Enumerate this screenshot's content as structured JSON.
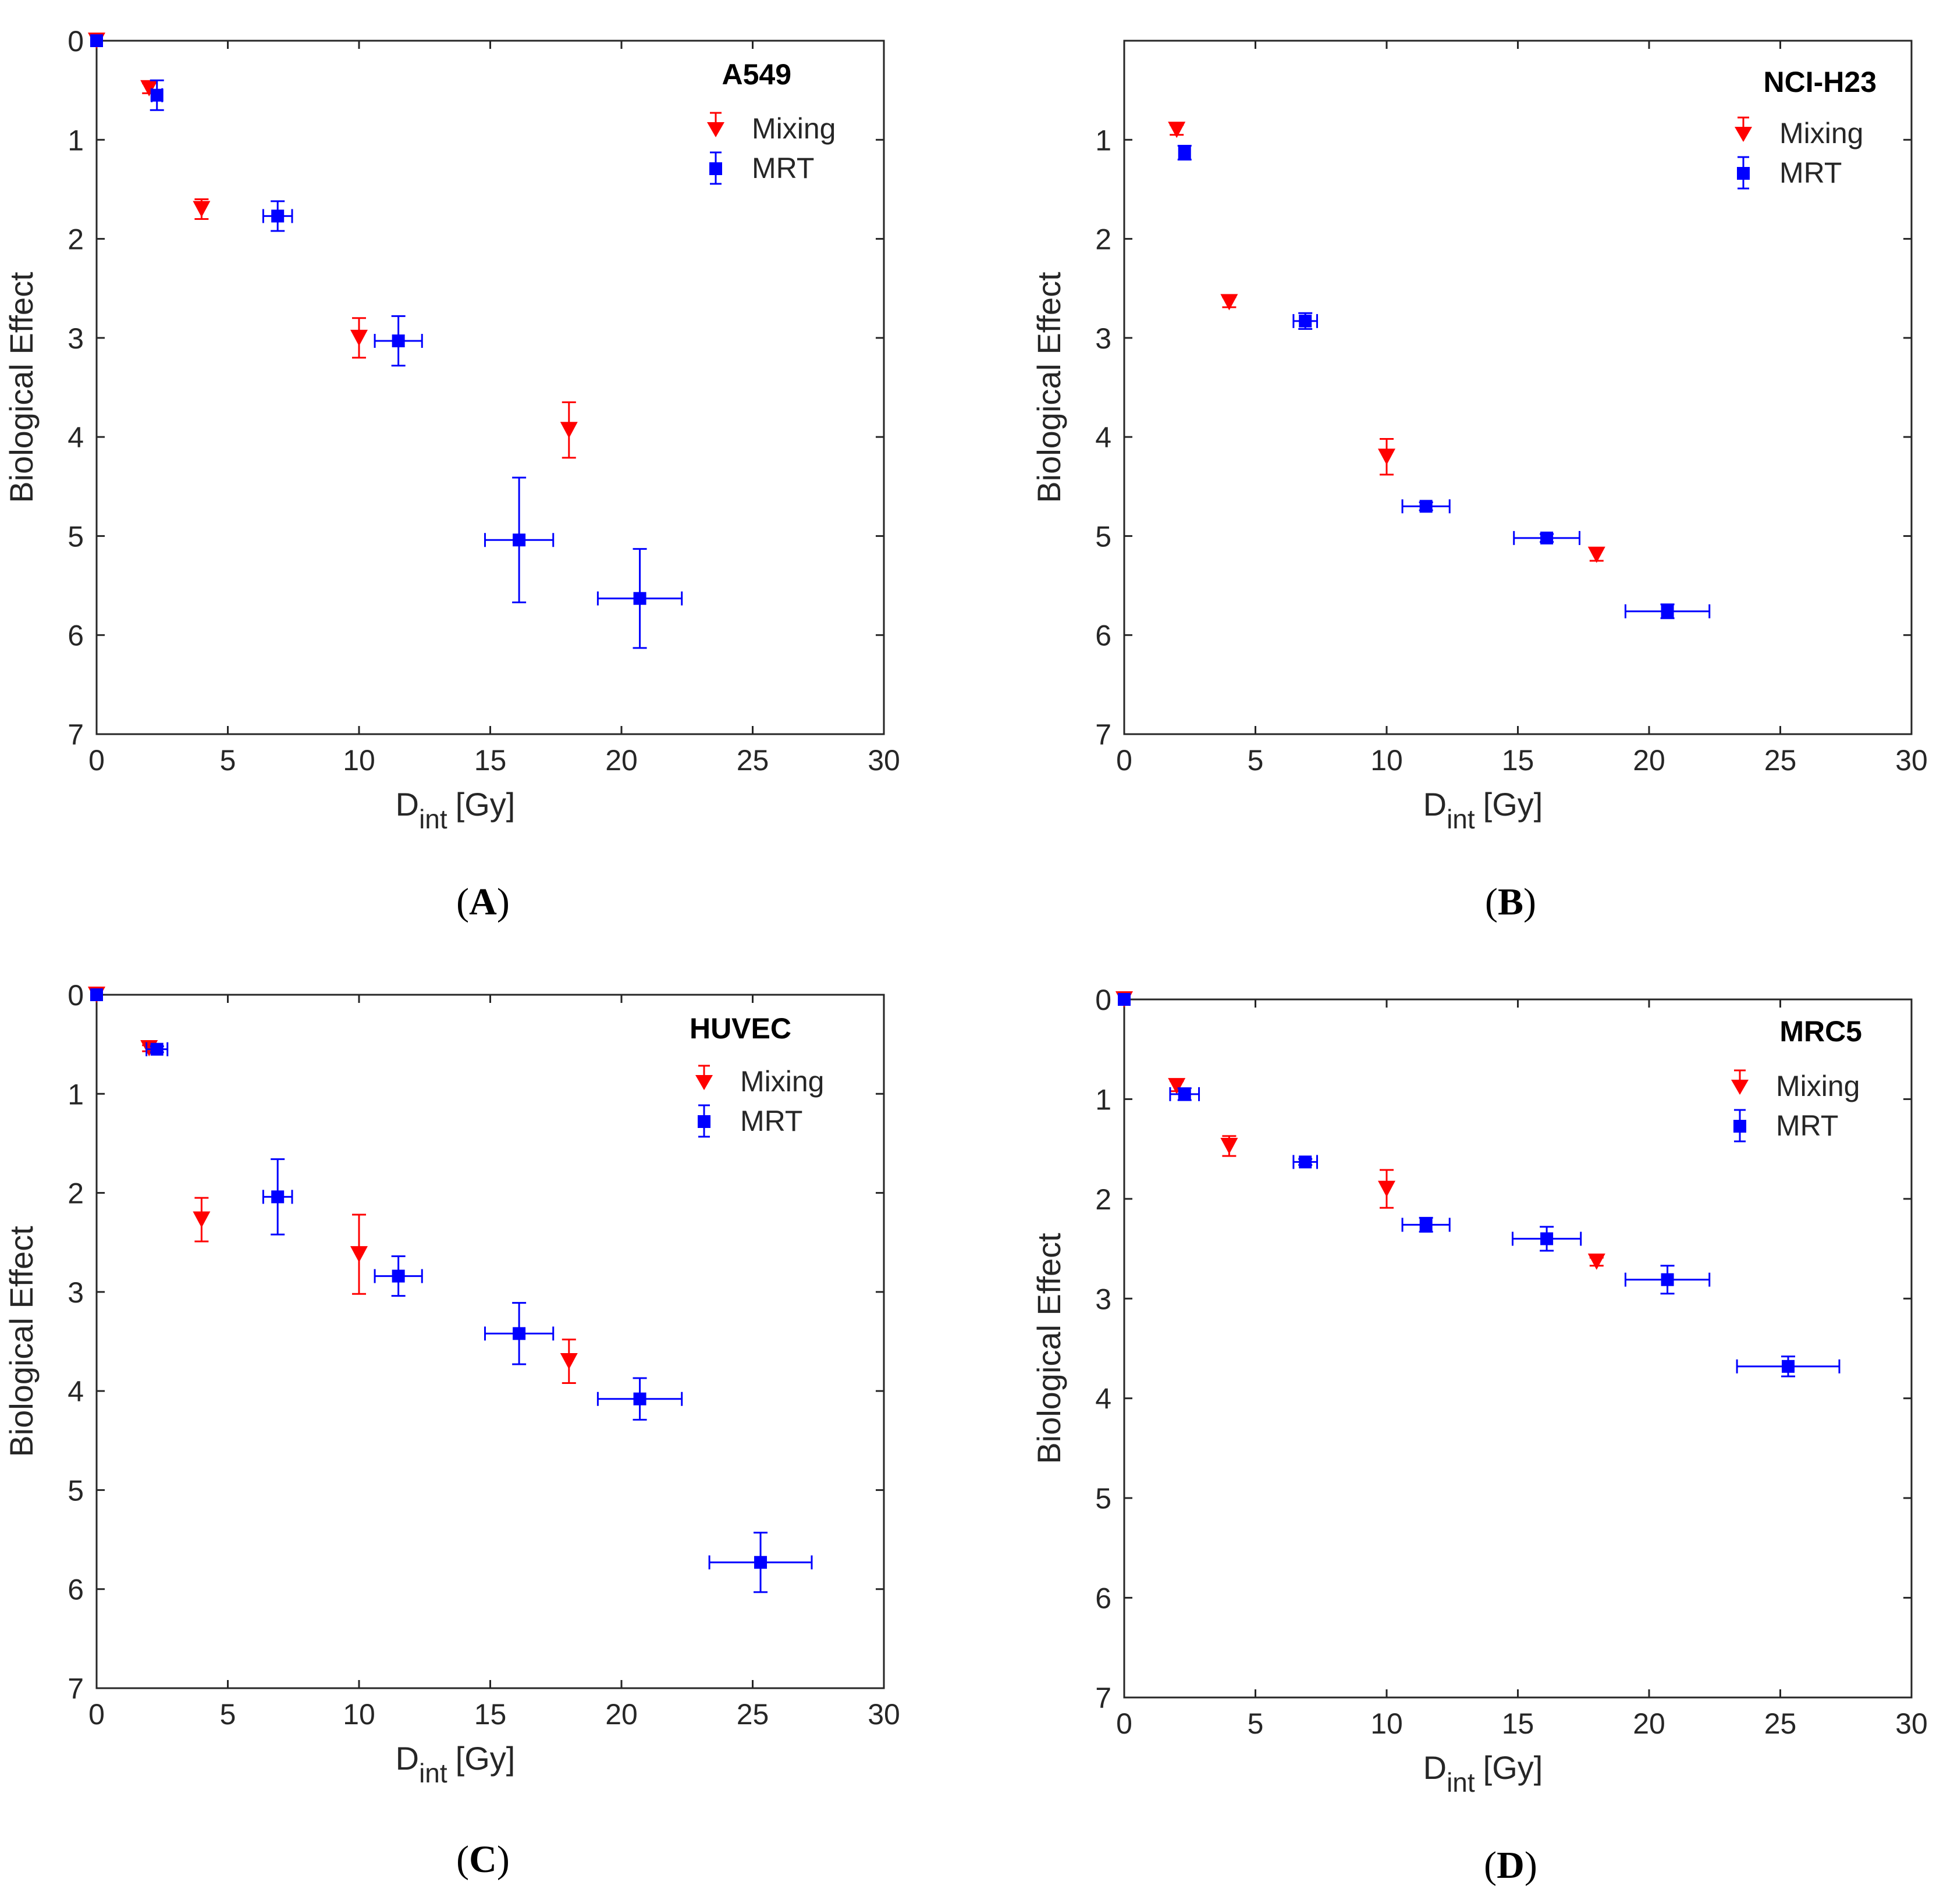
{
  "colors": {
    "mixing": "#ff0000",
    "mrt": "#0000ff",
    "axis": "#262626"
  },
  "chart_data": [
    {
      "type": "scatter",
      "panel": "(A)",
      "panel_letter": "A",
      "title": "A549",
      "xlabel_main": "D",
      "xlabel_sub": "int",
      "xlabel_unit": "[Gy]",
      "ylabel": "Biological Effect",
      "xlim": [
        0,
        30
      ],
      "ylim": [
        0,
        7
      ],
      "y_reversed": true,
      "xticks": [
        0,
        5,
        10,
        15,
        20,
        25,
        30
      ],
      "yticks": [
        0,
        1,
        2,
        3,
        4,
        5,
        6,
        7
      ],
      "legend": {
        "mixing": "Mixing",
        "mrt": "MRT",
        "position": "top-right"
      },
      "series": [
        {
          "name": "Mixing",
          "marker": "triangle-down",
          "color": "#ff0000",
          "x": [
            0,
            2,
            4,
            10,
            18
          ],
          "y": [
            0,
            0.48,
            1.7,
            3.0,
            3.93
          ],
          "yerr_low": [
            0,
            0.05,
            0.1,
            0.2,
            0.28
          ],
          "yerr_high": [
            0,
            0.05,
            0.1,
            0.2,
            0.28
          ],
          "xerr": [
            0,
            0,
            0,
            0,
            0
          ]
        },
        {
          "name": "MRT",
          "marker": "square",
          "color": "#0000ff",
          "x": [
            0,
            2.3,
            6.9,
            11.5,
            16.1,
            20.7
          ],
          "y": [
            0,
            0.55,
            1.77,
            3.03,
            5.04,
            5.63
          ],
          "yerr_low": [
            0,
            0.15,
            0.15,
            0.25,
            0.63,
            0.5
          ],
          "yerr_high": [
            0,
            0.15,
            0.15,
            0.25,
            0.63,
            0.5
          ],
          "xerr": [
            0,
            0.2,
            0.55,
            0.9,
            1.3,
            1.6
          ]
        }
      ]
    },
    {
      "type": "scatter",
      "panel": "(B)",
      "panel_letter": "B",
      "title": "NCI-H23",
      "xlabel_main": "D",
      "xlabel_sub": "int",
      "xlabel_unit": "[Gy]",
      "ylabel": "Biological Effect",
      "xlim": [
        0,
        30
      ],
      "ylim": [
        0,
        7
      ],
      "y_reversed": true,
      "xticks": [
        0,
        5,
        10,
        15,
        20,
        25,
        30
      ],
      "yticks": [
        1,
        2,
        3,
        4,
        5,
        6,
        7
      ],
      "legend": {
        "mixing": "Mixing",
        "mrt": "MRT",
        "position": "top-right"
      },
      "series": [
        {
          "name": "Mixing",
          "marker": "triangle-down",
          "color": "#ff0000",
          "x": [
            2,
            4,
            10,
            18
          ],
          "y": [
            0.9,
            2.64,
            4.2,
            5.19
          ],
          "yerr_low": [
            0.05,
            0.05,
            0.18,
            0.06
          ],
          "yerr_high": [
            0.05,
            0.05,
            0.18,
            0.06
          ],
          "xerr": [
            0,
            0,
            0,
            0
          ]
        },
        {
          "name": "MRT",
          "marker": "square",
          "color": "#0000ff",
          "x": [
            2.3,
            6.9,
            11.5,
            16.1,
            20.7
          ],
          "y": [
            1.13,
            2.83,
            4.7,
            5.02,
            5.76
          ],
          "yerr_low": [
            0.07,
            0.08,
            0.04,
            0.04,
            0.07
          ],
          "yerr_high": [
            0.07,
            0.08,
            0.04,
            0.04,
            0.07
          ],
          "xerr": [
            0.2,
            0.45,
            0.9,
            1.25,
            1.6
          ]
        }
      ]
    },
    {
      "type": "scatter",
      "panel": "(C)",
      "panel_letter": "C",
      "title": "HUVEC",
      "xlabel_main": "D",
      "xlabel_sub": "int",
      "xlabel_unit": "[Gy]",
      "ylabel": "Biological Effect",
      "xlim": [
        0,
        30
      ],
      "ylim": [
        0,
        7
      ],
      "y_reversed": true,
      "xticks": [
        0,
        5,
        10,
        15,
        20,
        25,
        30
      ],
      "yticks": [
        0,
        1,
        2,
        3,
        4,
        5,
        6,
        7
      ],
      "legend": {
        "mixing": "Mixing",
        "mrt": "MRT",
        "position": "top-right"
      },
      "series": [
        {
          "name": "Mixing",
          "marker": "triangle-down",
          "color": "#ff0000",
          "x": [
            0,
            2,
            4,
            10,
            18
          ],
          "y": [
            0,
            0.54,
            2.27,
            2.62,
            3.7
          ],
          "yerr_low": [
            0,
            0.03,
            0.22,
            0.4,
            0.22
          ],
          "yerr_high": [
            0,
            0.03,
            0.22,
            0.4,
            0.22
          ],
          "xerr": [
            0,
            0,
            0,
            0,
            0
          ]
        },
        {
          "name": "MRT",
          "marker": "square",
          "color": "#0000ff",
          "x": [
            0,
            2.3,
            6.9,
            11.5,
            16.1,
            20.7,
            25.3
          ],
          "y": [
            0,
            0.55,
            2.04,
            2.84,
            3.42,
            4.08,
            5.73
          ],
          "yerr_low": [
            0,
            0.03,
            0.38,
            0.2,
            0.31,
            0.21,
            0.3
          ],
          "yerr_high": [
            0,
            0.03,
            0.38,
            0.2,
            0.31,
            0.21,
            0.3
          ],
          "xerr": [
            0,
            0.4,
            0.55,
            0.9,
            1.3,
            1.6,
            1.95
          ]
        }
      ]
    },
    {
      "type": "scatter",
      "panel": "(D)",
      "panel_letter": "D",
      "title": "MRC5",
      "xlabel_main": "D",
      "xlabel_sub": "int",
      "xlabel_unit": "[Gy]",
      "ylabel": "Biological Effect",
      "xlim": [
        0,
        30
      ],
      "ylim": [
        0,
        7
      ],
      "y_reversed": true,
      "xticks": [
        0,
        5,
        10,
        15,
        20,
        25,
        30
      ],
      "yticks": [
        0,
        1,
        2,
        3,
        4,
        5,
        6,
        7
      ],
      "legend": {
        "mixing": "Mixing",
        "mrt": "MRT",
        "position": "top-right"
      },
      "series": [
        {
          "name": "Mixing",
          "marker": "triangle-down",
          "color": "#ff0000",
          "x": [
            0,
            2,
            4,
            10,
            18
          ],
          "y": [
            0,
            0.87,
            1.47,
            1.9,
            2.63
          ],
          "yerr_low": [
            0,
            0.05,
            0.1,
            0.19,
            0.04
          ],
          "yerr_high": [
            0,
            0.05,
            0.1,
            0.19,
            0.04
          ],
          "xerr": [
            0,
            0,
            0,
            0,
            0
          ]
        },
        {
          "name": "MRT",
          "marker": "square",
          "color": "#0000ff",
          "x": [
            0,
            2.3,
            6.9,
            11.5,
            16.1,
            20.7,
            25.3
          ],
          "y": [
            0,
            0.95,
            1.63,
            2.26,
            2.4,
            2.81,
            3.68
          ],
          "yerr_low": [
            0,
            0.06,
            0.03,
            0.07,
            0.12,
            0.14,
            0.1
          ],
          "yerr_high": [
            0,
            0.06,
            0.03,
            0.07,
            0.12,
            0.14,
            0.1
          ],
          "xerr": [
            0,
            0.55,
            0.45,
            0.9,
            1.3,
            1.6,
            1.95
          ]
        }
      ]
    }
  ]
}
